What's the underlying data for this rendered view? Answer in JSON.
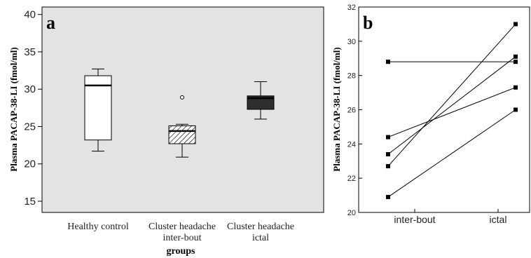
{
  "chart_data": [
    {
      "panel_label": "a",
      "type": "box",
      "xlabel": "groups",
      "ylabel": "Plasma PACAP-38-LI (fmol/ml)",
      "ylim": [
        13.5,
        41
      ],
      "yticks": [
        15,
        20,
        25,
        30,
        35,
        40
      ],
      "grid": false,
      "background": "#e3e3e3",
      "boxes": [
        {
          "label": [
            "Healthy control"
          ],
          "min": 21.7,
          "q1": 23.2,
          "median": 30.5,
          "q3": 31.8,
          "max": 32.7,
          "outliers": [],
          "fill": "white"
        },
        {
          "label": [
            "Cluster headache",
            "inter-bout"
          ],
          "min": 20.9,
          "q1": 22.7,
          "median": 24.4,
          "q3": 25.1,
          "max": 25.3,
          "outliers": [
            28.9
          ],
          "fill": "hatched"
        },
        {
          "label": [
            "Cluster headache",
            "ictal"
          ],
          "min": 26.0,
          "q1": 27.3,
          "median": 28.8,
          "q3": 29.1,
          "max": 31.0,
          "outliers": [],
          "fill": "dark"
        }
      ]
    },
    {
      "panel_label": "b",
      "type": "line",
      "xlabel": "",
      "ylabel": "Plasma PACAP-38-LI (fmol/ml)",
      "categories": [
        "inter-bout",
        "ictal"
      ],
      "ylim": [
        20,
        32
      ],
      "yticks": [
        20,
        22,
        24,
        26,
        28,
        30,
        32
      ],
      "grid": false,
      "series": [
        {
          "values": [
            28.8,
            28.8
          ]
        },
        {
          "values": [
            24.4,
            27.3
          ]
        },
        {
          "values": [
            23.4,
            29.1
          ]
        },
        {
          "values": [
            22.7,
            31.0
          ]
        },
        {
          "values": [
            20.9,
            26.0
          ]
        }
      ]
    }
  ]
}
